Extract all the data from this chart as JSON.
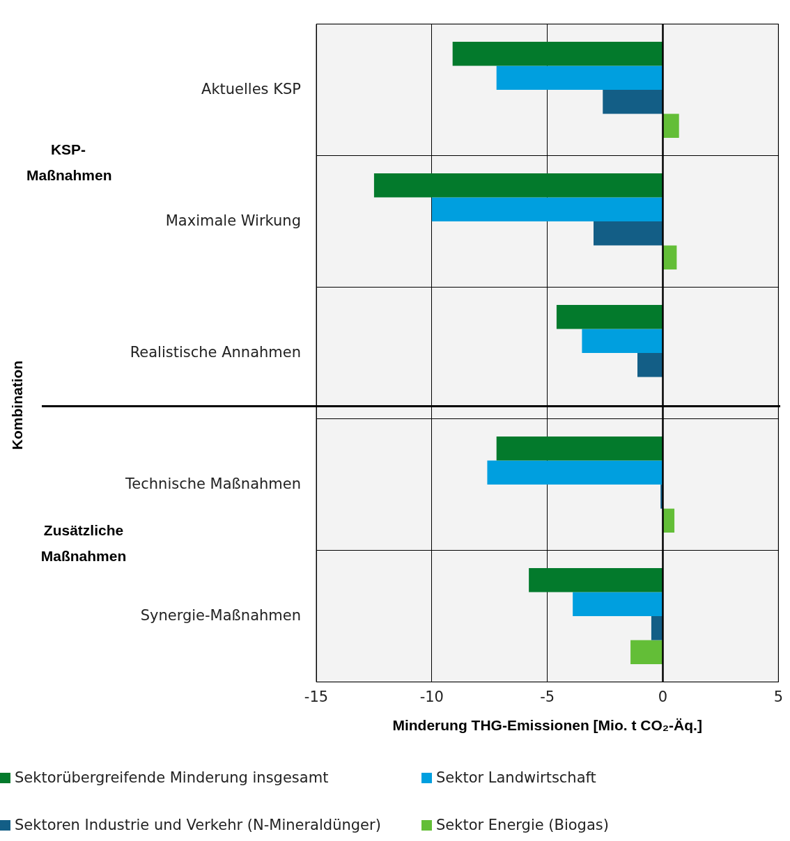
{
  "chart_data": {
    "type": "bar",
    "orientation": "horizontal",
    "xlabel": "Minderung THG-Emissionen [Mio. t CO₂-Äq.]",
    "categories": [
      "Aktuelles KSP",
      "Maximale Wirkung",
      "Realistische Annahmen",
      "Technische Maßnahmen",
      "Synergie-Maßnahmen"
    ],
    "series": [
      {
        "name": "Sektorübergreifende Minderung insgesamt",
        "color": "#037a2c",
        "values": [
          -9.1,
          -12.5,
          -4.6,
          -7.2,
          -5.8
        ]
      },
      {
        "name": "Sektor Landwirtschaft",
        "color": "#009fdf",
        "values": [
          -7.2,
          -10.0,
          -3.5,
          -7.6,
          -3.9
        ]
      },
      {
        "name": "Sektoren Industrie und Verkehr (N-Mineraldünger)",
        "color": "#135e86",
        "values": [
          -2.6,
          -3.0,
          -1.1,
          -0.1,
          -0.5
        ]
      },
      {
        "name": "Sektor Energie (Biogas)",
        "color": "#63be37",
        "values": [
          0.7,
          0.6,
          null,
          0.5,
          -1.4
        ]
      }
    ],
    "xlim": [
      -15,
      5
    ],
    "xticks": [
      -15,
      -10,
      -5,
      0,
      5
    ],
    "grid": true,
    "legend": "bottom",
    "annotations": [
      "KSP-Maßnahmen",
      "Kombination",
      "Zusätzliche Maßnahmen"
    ]
  }
}
